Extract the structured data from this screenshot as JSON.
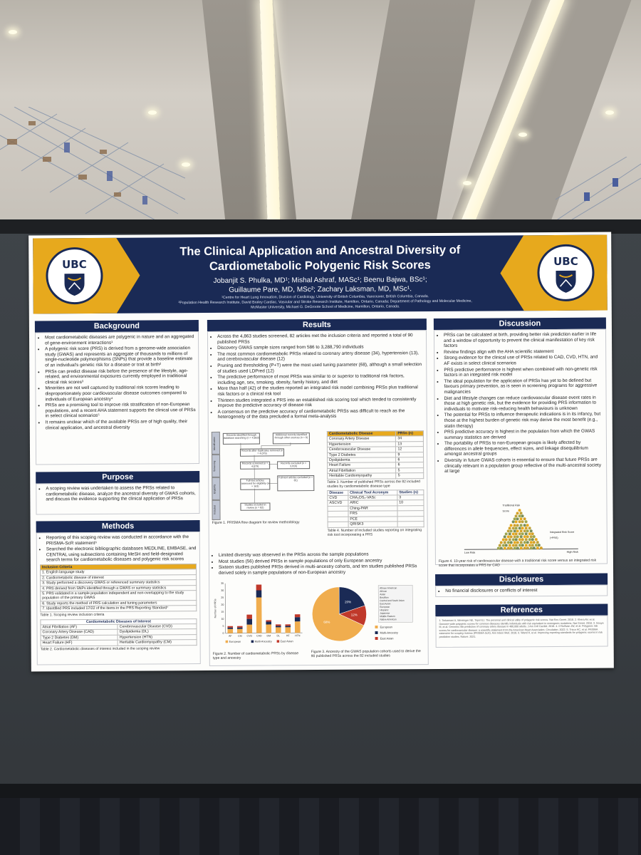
{
  "poster": {
    "title_line1": "The Clinical Application and Ancestral Diversity of",
    "title_line2": "Cardiometabolic Polygenic Risk Scores",
    "authors_line1": "Jobanjit S. Phulka, MD¹; Mishal Ashraf, MASc¹; Beenu Bajwa, BSc¹;",
    "authors_line2": "Guillaume Pare, MD, MSc²; Zachary Laksman, MD, MSc¹.",
    "affiliation_1": "¹Centre for Heart Lung Innovation, Division of Cardiology, University of British Columbia, Vancouver, British Columbia, Canada.",
    "affiliation_2": "²Population Health Research Institute, David Braley Cardiac, Vascular and Stroke Research Institute, Hamilton, Ontario, Canada; Department of Pathology and Molecular Medicine, McMaster University, Michael G. DeGroote School of Medicine, Hamilton, Ontario, Canada.",
    "logo_text": "UBC",
    "colors": {
      "navy": "#1a2a55",
      "gold": "#e7a91d"
    },
    "background": {
      "heading": "Background",
      "bullets": [
        "Most cardiometabolic diseases are polygenic in nature and an aggregated of gene-environment interactions¹",
        "A polygenic risk score (PRS) is derived from a genome-wide association study (GWAS) and represents an aggregate of thousands to millions of single-nucleotide polymorphisms (SNPs) that provide a baseline estimate of an individual's genetic risk for a disease or trait at birth²",
        "PRSs can predict disease risk before the presence of the lifestyle, age-related, and environmental exposures currently employed in traditional clinical risk scores³",
        "Minorities are not well captured by traditional risk scores leading to disproportionately poor cardiovascular disease outcomes compared to individuals of European ancestry⁴",
        "PRSs are a promising tool to improve risk stratification of non-European populations, and a recent AHA statement supports the clinical use of PRSs in select clinical scenarios⁵",
        "It remains unclear which of the available PRSs are of high quality, their clinical application, and ancestral diversity"
      ]
    },
    "purpose": {
      "heading": "Purpose",
      "bullets": [
        "A scoping review was undertaken to assess the PRSs related to cardiometabolic disease, analyze the ancestral diversity of GWAS cohorts, and discuss the evidence supporting the clinical application of PRSs"
      ]
    },
    "methods": {
      "heading": "Methods",
      "bullets": [
        "Reporting of this scoping review was conducted in accordance with the PRISMA-ScR statement⁶",
        "Searched the electronic bibliographic databases MEDLINE, EMBASE, and CENTRAL using subsections containing MeSH and field-designated search terms for cardiometabolic diseases and polygenic risk scores"
      ],
      "criteria_header": "Inclusion Criteria",
      "criteria": [
        "1. English language study",
        "2. Cardiometabolic disease of interest",
        "3. Study performed a discovery GWAS or referenced summary statistics",
        "4. PRS derived from SNPs identified through a GWAS or summary statistics",
        "5. PRS validated in a sample population independent and non-overlapping to the study population of the primary GWAS",
        "6. Study reports the method of PRS calculation and tuning parameters",
        "7. Identified PRS included 17/22 of the items in the PRS Reporting Standard⁷"
      ],
      "table1_caption": "Table 1. Scoping review inclusion criteria",
      "diseases_header": "Cardiometabolic Diseases of Interest",
      "diseases": [
        [
          "Atrial Fibrillation (AF)",
          "Cerebrovascular Disease (CVD)"
        ],
        [
          "Coronary Artery Disease (CAD)",
          "Dyslipidemia (DL)"
        ],
        [
          "Type 2 Diabetes (DM)",
          "Hypertension (HTN)"
        ],
        [
          "Heart Failure (HF)",
          "Heritable Cardiomyopathy (CM)"
        ]
      ],
      "table2_caption": "Table 2. Cardiometabolic diseases of interest included in the scoping review"
    },
    "results": {
      "heading": "Results",
      "bullets": [
        "Across the 4,863 studies screened, 82 articles met the inclusion criteria and reported a total of 90 published PRSs",
        "Discovery GWAS sample sizes ranged from 586 to 3,288,790 individuals",
        "The most common cardiometabolic PRSs related to coronary artery disease (34), hypertension (13), and cerebrovascular disease (12)",
        "Pruning and thresholding (P+T) were the most used tuning parameter (68), although a small selection of studies used LDPred (12)",
        "The predictive performance of most PRSs was similar to or superior to traditional risk factors, including age, sex, smoking, obesity, family history, and diet",
        "More than half (42) of the studies reported an integrated risk model combining PRSs plus traditional risk factors or a clinical risk tool",
        "Thirteen studies integrated a PRS into an established risk scoring tool which tended to consistently improve the predictive accuracy of disease risk",
        "A consensus on the predictive accuracy of cardiometabolic PRSs was difficult to reach as the heterogeneity of the data precluded a formal meta-analysis"
      ],
      "prs_table": {
        "headers": [
          "Cardiometabolic Disease",
          "PRSs (n)"
        ],
        "rows": [
          [
            "Coronary Artery Disease",
            "34"
          ],
          [
            "Hypertension",
            "13"
          ],
          [
            "Cerebrovascular Disease",
            "12"
          ],
          [
            "Type 2 Diabetes",
            "9"
          ],
          [
            "Dyslipidemia",
            "6"
          ],
          [
            "Heart Failure",
            "6"
          ],
          [
            "Atrial Fibrillation",
            "5"
          ],
          [
            "Heritable Cardiomyopathy",
            "5"
          ]
        ],
        "caption": "Table 3. Number of published PRSs across the 82 included studies by cardiometabolic disease type"
      },
      "tool_table": {
        "headers": [
          "Disease",
          "Clinical Tool Acronym",
          "Studies (n)"
        ],
        "rows": [
          [
            "CVD",
            "CHA₂DS₂-VASc",
            "3"
          ],
          [
            "ASCVD",
            "ARIC",
            "10"
          ],
          [
            "",
            "Ching-PAR",
            ""
          ],
          [
            "",
            "FRS",
            ""
          ],
          [
            "",
            "PCE",
            ""
          ],
          [
            "",
            "QRISK3",
            ""
          ]
        ],
        "caption": "Table 4. Number of included studies reporting on integrating risk tool incorporating a PRS"
      },
      "flow_caption": "Figure 1. PRISMA flow diagram for review methodology",
      "flow_stages": [
        "Identification",
        "Screening",
        "Eligibility",
        "Included"
      ],
      "flow_boxes": [
        "Records identified through database searching (n = 4,863)",
        "Additional records identified through other sources (n = 0)",
        "Records after duplicates removed (n = 4,079)",
        "Records screened (n = 4,079)",
        "Records excluded (n = 3,916)",
        "Full-text articles assessed for eligibility (n = 163)",
        "Full-text articles excluded (n = 81)",
        "Studies included in review (n = 82)"
      ],
      "bullets2": [
        "Limited diversity was observed in the PRSs across the sample populations",
        "Most studies (56) derived PRSs in sample populations of only European ancestry",
        "Sixteen studies published PRSs derived in multi-ancestry cohorts, and ten studies published PRSs derived solely in sample populations of non-European ancestry"
      ],
      "fig2_caption": "Figure 2. Number of cardiometabolic PRSs by disease type and ancestry",
      "fig3_caption": "Figure 3. Ancestry of the GWAS population cohorts used to derive the 90 published PRSs across the 82 included studies"
    },
    "discussion": {
      "heading": "Discussion",
      "bullets": [
        "PRSs can be calculated at birth, providing better risk prediction earlier in life and a window of opportunity to prevent the clinical manifestation of key risk factors",
        "Review findings align with the AHA scientific statement",
        "Strong evidence for the clinical use of PRSs related to CAD, CVD, HTN, and AF exists in select clinical scenarios",
        "PRS predictive performance is highest when combined with non-genetic risk factors in an integrated risk model",
        "The ideal population for the application of PRSs has yet to be defined but favours primary prevention, as is seen in screening programs for aggressive malignancies",
        "Diet and lifestyle changes can reduce cardiovascular disease event rates in those at high genetic risk, but the evidence for providing PRS information to individuals to motivate risk-reducing health behaviours is unknown",
        "The potential for PRSs to influence therapeutic indications is in its infancy, but those at the highest burden of genetic risk may derive the most benefit (e.g., statin therapy)",
        "PRS predictive accuracy is highest in the population from which the GWAS summary statistics are derived",
        "The portability of PRSs to non-European groups is likely affected by differences in allele frequencies, effect sizes, and linkage disequilibrium amongst ancestral groups",
        "Diversity in future GWAS cohorts is essential to ensure that future PRSs are clinically relevant in a population group reflective of the multi-ancestral society at large"
      ],
      "fig4_low": "Low Risk",
      "fig4_high": "High Risk",
      "fig4_label_a": "Traditional Risk Score",
      "fig4_label_b": "Integrated Risk Score (+PRS)",
      "fig4_caption": "Figure 4. 10-year risk of cardiovascular disease with a traditional risk score versus an integrated risk score that incorporates a PRS for CAD"
    },
    "disclosures": {
      "heading": "Disclosures",
      "bullets": [
        "No financial disclosures or conflicts of interest"
      ]
    },
    "references": {
      "heading": "References",
      "text": "1. Torkamani A, Wineinger NE, Topol EJ. The personal and clinical utility of polygenic risk scores. Nat Rev Genet. 2018. 2. Khera AV, et al. Genome-wide polygenic scores for common diseases identify individuals with risk equivalent to monogenic mutations. Nat Genet. 2018. 3. Inouye M, et al. Genomic risk prediction of coronary artery disease in 480,000 adults. J Am Coll Cardiol. 2018. 4. O'Sullivan JW, et al. Polygenic risk scores for cardiovascular disease: a scientific statement from the American Heart Association. Circulation. 2022. 5. Tricco AC, et al. PRISMA extension for scoping reviews (PRISMA-ScR). Ann Intern Med. 2018. 6. Wand H, et al. Improving reporting standards for polygenic scores in risk prediction studies. Nature. 2021."
    }
  },
  "chart_data": [
    {
      "type": "bar",
      "categories": [
        "AF",
        "CM",
        "CVD",
        "CAD",
        "DM",
        "DL",
        "HF",
        "HTN"
      ],
      "series": [
        {
          "name": "European",
          "values": [
            3,
            3,
            6,
            25,
            6,
            4,
            4,
            8
          ],
          "color": "#f0ad4e"
        },
        {
          "name": "Multi-Ancestry",
          "values": [
            1,
            1,
            4,
            5,
            2,
            1,
            1,
            3
          ],
          "color": "#1a2a55"
        },
        {
          "name": "East Asian",
          "values": [
            1,
            1,
            3,
            4,
            1,
            1,
            1,
            2
          ],
          "color": "#c0392b"
        }
      ],
      "stacked": true,
      "ylabel": "Number of PRSs",
      "ylim": [
        0,
        35
      ],
      "yticks": [
        0,
        5,
        10,
        15,
        20,
        25,
        30,
        35
      ],
      "legend": "bottom"
    },
    {
      "type": "pie",
      "categories": [
        "European",
        "Multi-Ancestry",
        "East Asian"
      ],
      "values": [
        68,
        20,
        12
      ],
      "labels": [
        "68%",
        "20%",
        "12%"
      ],
      "colors": [
        "#f0ad4e",
        "#1a2a55",
        "#c0392b"
      ],
      "legend": "right",
      "multi_ancestry_list": [
        "African American",
        "African",
        "Asian",
        "Brazilian",
        "Central and South Asian",
        "East Asian",
        "European",
        "Hispanic",
        "Japanese",
        "Middle Eastern",
        "Native American"
      ]
    }
  ]
}
